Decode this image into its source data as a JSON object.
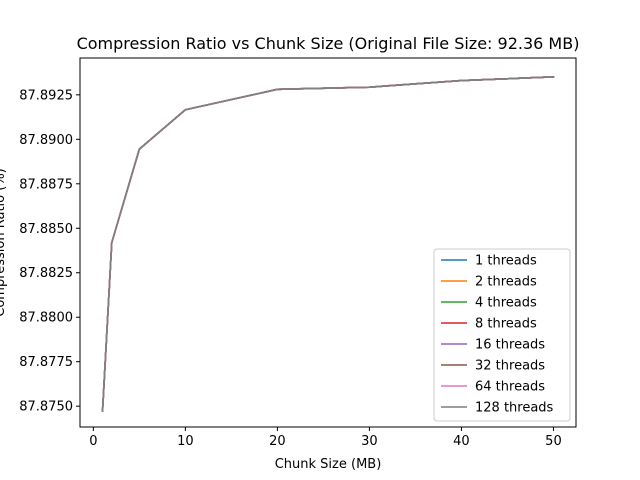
{
  "chart_data": {
    "type": "line",
    "title": "Compression Ratio vs Chunk Size (Original File Size: 92.36 MB)",
    "xlabel": "Chunk Size (MB)",
    "ylabel": "Compression Ratio (%)",
    "xlim": [
      -1.45,
      52.45
    ],
    "ylim": [
      87.87383,
      87.89457
    ],
    "xticks": [
      0,
      10,
      20,
      30,
      40,
      50
    ],
    "xtick_labels": [
      "0",
      "10",
      "20",
      "30",
      "40",
      "50"
    ],
    "yticks": [
      87.875,
      87.8775,
      87.88,
      87.8825,
      87.885,
      87.8875,
      87.89,
      87.8925
    ],
    "ytick_labels": [
      "87.8750",
      "87.8775",
      "87.8800",
      "87.8825",
      "87.8850",
      "87.8875",
      "87.8900",
      "87.8925"
    ],
    "grid": false,
    "legend_position": "lower-right",
    "x": [
      1,
      2,
      5,
      10,
      20,
      30,
      40,
      50
    ],
    "series": [
      {
        "name": "1 threads",
        "color": "#1f77b4",
        "values": [
          87.87474,
          87.88419,
          87.88945,
          87.89166,
          87.89281,
          87.89293,
          87.8933,
          87.89351
        ]
      },
      {
        "name": "2 threads",
        "color": "#ff7f0e",
        "values": [
          87.87474,
          87.88419,
          87.88945,
          87.89166,
          87.89281,
          87.89293,
          87.8933,
          87.89351
        ]
      },
      {
        "name": "4 threads",
        "color": "#2ca02c",
        "values": [
          87.87474,
          87.88419,
          87.88945,
          87.89166,
          87.89281,
          87.89293,
          87.8933,
          87.89351
        ]
      },
      {
        "name": "8 threads",
        "color": "#d62728",
        "values": [
          87.87474,
          87.88419,
          87.88945,
          87.89166,
          87.89281,
          87.89293,
          87.8933,
          87.89351
        ]
      },
      {
        "name": "16 threads",
        "color": "#9467bd",
        "values": [
          87.87474,
          87.88419,
          87.88945,
          87.89166,
          87.89281,
          87.89293,
          87.8933,
          87.89351
        ]
      },
      {
        "name": "32 threads",
        "color": "#8c564b",
        "values": [
          87.87474,
          87.88419,
          87.88945,
          87.89166,
          87.89281,
          87.89293,
          87.8933,
          87.89351
        ]
      },
      {
        "name": "64 threads",
        "color": "#e377c2",
        "values": [
          87.87474,
          87.88419,
          87.88945,
          87.89166,
          87.89281,
          87.89293,
          87.8933,
          87.89351
        ]
      },
      {
        "name": "128 threads",
        "color": "#7f7f7f",
        "values": [
          87.87474,
          87.88419,
          87.88945,
          87.89166,
          87.89281,
          87.89293,
          87.8933,
          87.89351
        ]
      }
    ]
  }
}
